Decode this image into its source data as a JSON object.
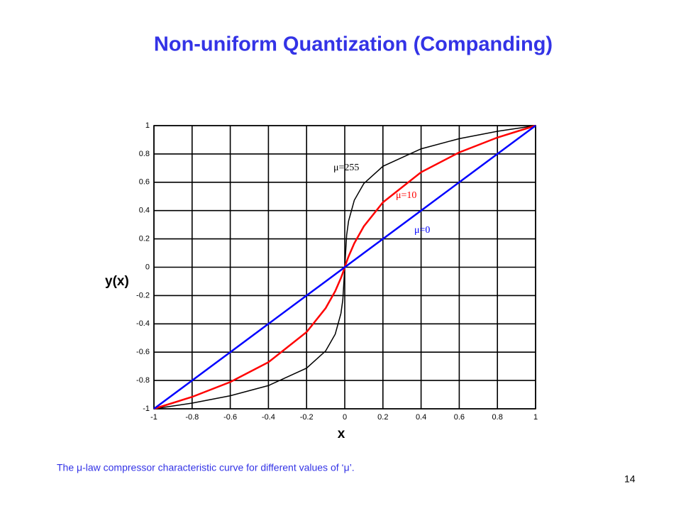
{
  "slide": {
    "title": "Non-uniform Quantization (Companding)",
    "caption": "The μ-law compressor characteristic curve for different values of ‘μ’.",
    "page_number": 14
  },
  "chart_data": {
    "type": "line",
    "x_label": "x",
    "y_label": "y(x)",
    "x": [
      -1,
      -0.8,
      -0.6,
      -0.4,
      -0.2,
      -0.1,
      -0.05,
      -0.02,
      -0.01,
      0,
      0.01,
      0.02,
      0.05,
      0.1,
      0.2,
      0.4,
      0.6,
      0.8,
      1
    ],
    "series": [
      {
        "name": "μ=255",
        "color": "#000000",
        "values": [
          -1,
          -0.96,
          -0.908,
          -0.836,
          -0.713,
          -0.591,
          -0.473,
          -0.326,
          -0.228,
          0,
          0.228,
          0.326,
          0.473,
          0.591,
          0.713,
          0.836,
          0.908,
          0.96,
          1
        ]
      },
      {
        "name": "μ=10",
        "color": "#ff0000",
        "values": [
          -1,
          -0.916,
          -0.811,
          -0.671,
          -0.458,
          -0.289,
          -0.169,
          -0.076,
          -0.04,
          0,
          0.04,
          0.076,
          0.169,
          0.289,
          0.458,
          0.671,
          0.811,
          0.916,
          1
        ]
      },
      {
        "name": "μ=0",
        "color": "#0000ff",
        "values": [
          -1,
          -0.8,
          -0.6,
          -0.4,
          -0.2,
          -0.1,
          -0.05,
          -0.02,
          -0.01,
          0,
          0.01,
          0.02,
          0.05,
          0.1,
          0.2,
          0.4,
          0.6,
          0.8,
          1
        ]
      }
    ],
    "xlim": [
      -1,
      1
    ],
    "ylim": [
      -1,
      1
    ],
    "xticks": [
      -1,
      -0.8,
      -0.6,
      -0.4,
      -0.2,
      0,
      0.2,
      0.4,
      0.6,
      0.8,
      1
    ],
    "yticks": [
      -1,
      -0.8,
      -0.6,
      -0.4,
      -0.2,
      0,
      0.2,
      0.4,
      0.6,
      0.8,
      1
    ],
    "grid": true
  }
}
